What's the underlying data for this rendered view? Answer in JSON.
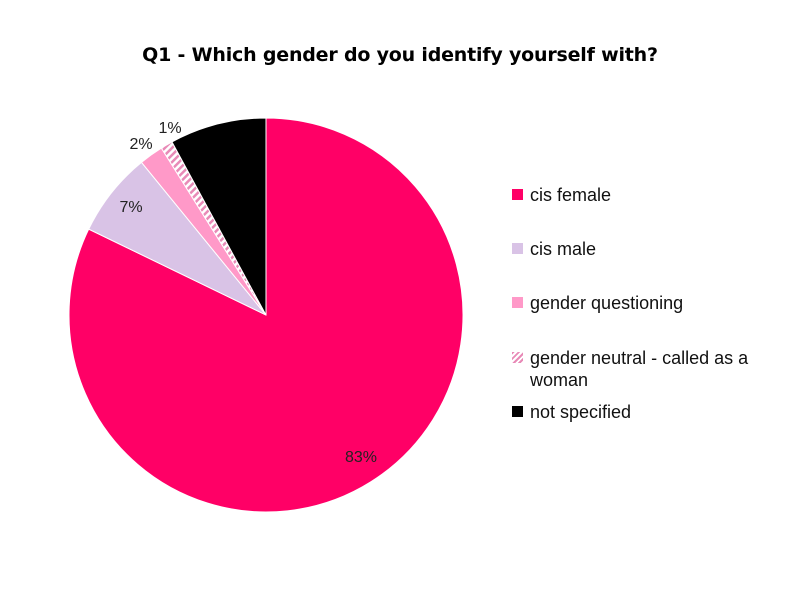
{
  "chart_data": {
    "type": "pie",
    "title": "Q1 - Which gender do you identify yourself with?",
    "slices": [
      {
        "label": "cis female",
        "value": 83,
        "display": "83%",
        "color": "#ff0066",
        "pattern": "solid"
      },
      {
        "label": "cis male",
        "value": 7,
        "display": "7%",
        "color": "#d9c3e6",
        "pattern": "solid"
      },
      {
        "label": "gender questioning",
        "value": 2,
        "display": "2%",
        "color": "#ff99c8",
        "pattern": "solid"
      },
      {
        "label": "gender neutral - called as a woman",
        "value": 1,
        "display": "1%",
        "color": "#e88ab7",
        "pattern": "striped"
      },
      {
        "label": "not specified",
        "value": 8,
        "display": "",
        "color": "#000000",
        "pattern": "solid"
      }
    ],
    "start_angle": "12 o'clock",
    "direction": "clockwise",
    "legend_position": "right"
  }
}
